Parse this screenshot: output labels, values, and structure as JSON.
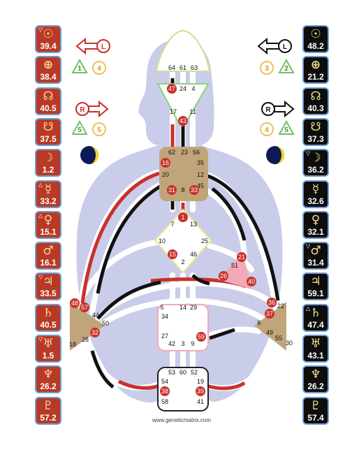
{
  "colors": {
    "design": "#b83a26",
    "personality": "#0d0d0d",
    "body": "#c9cdea",
    "center_tan": "#c1a57a",
    "center_pink": "#f0a9b5",
    "gate_red": "#c9302c"
  },
  "design_column": [
    {
      "icon": "sun",
      "symbol": "☉",
      "value": "39.4",
      "mark": "▽"
    },
    {
      "icon": "earth",
      "symbol": "⊕",
      "value": "38.4",
      "mark": ""
    },
    {
      "icon": "north-node",
      "symbol": "☊",
      "value": "40.5",
      "mark": ""
    },
    {
      "icon": "south-node",
      "symbol": "☋",
      "value": "37.5",
      "mark": ""
    },
    {
      "icon": "moon",
      "symbol": "☽",
      "value": "1.2",
      "mark": ""
    },
    {
      "icon": "mercury",
      "symbol": "☿",
      "value": "33.2",
      "mark": "△"
    },
    {
      "icon": "venus",
      "symbol": "♀",
      "value": "15.1",
      "mark": "△"
    },
    {
      "icon": "mars",
      "symbol": "♂",
      "value": "16.1",
      "mark": ""
    },
    {
      "icon": "jupiter",
      "symbol": "♃",
      "value": "33.5",
      "mark": "▽"
    },
    {
      "icon": "saturn",
      "symbol": "♄",
      "value": "40.5",
      "mark": ""
    },
    {
      "icon": "uranus",
      "symbol": "♅",
      "value": "1.5",
      "mark": "▽"
    },
    {
      "icon": "neptune",
      "symbol": "♆",
      "value": "26.2",
      "mark": ""
    },
    {
      "icon": "pluto",
      "symbol": "♇",
      "value": "57.2",
      "mark": ""
    }
  ],
  "personality_column": [
    {
      "icon": "sun",
      "symbol": "☉",
      "value": "48.2",
      "mark": ""
    },
    {
      "icon": "earth",
      "symbol": "⊕",
      "value": "21.2",
      "mark": ""
    },
    {
      "icon": "north-node",
      "symbol": "☊",
      "value": "40.3",
      "mark": ""
    },
    {
      "icon": "south-node",
      "symbol": "☋",
      "value": "37.3",
      "mark": ""
    },
    {
      "icon": "moon",
      "symbol": "☽",
      "value": "36.2",
      "mark": "▽"
    },
    {
      "icon": "mercury",
      "symbol": "☿",
      "value": "32.6",
      "mark": ""
    },
    {
      "icon": "venus",
      "symbol": "♀",
      "value": "32.1",
      "mark": ""
    },
    {
      "icon": "mars",
      "symbol": "♂",
      "value": "31.4",
      "mark": "▽"
    },
    {
      "icon": "jupiter",
      "symbol": "♃",
      "value": "59.1",
      "mark": ""
    },
    {
      "icon": "saturn",
      "symbol": "♄",
      "value": "47.4",
      "mark": "△"
    },
    {
      "icon": "uranus",
      "symbol": "♅",
      "value": "43.1",
      "mark": ""
    },
    {
      "icon": "neptune",
      "symbol": "♆",
      "value": "26.2",
      "mark": ""
    },
    {
      "icon": "pluto",
      "symbol": "♇",
      "value": "57.4",
      "mark": ""
    }
  ],
  "variables": {
    "design_top": {
      "arrow_letter": "L",
      "left_num": "1",
      "right_num": "4"
    },
    "design_bottom": {
      "arrow_letter": "R",
      "left_num": "5",
      "right_num": "5"
    },
    "personality_top": {
      "arrow_letter": "L",
      "left_num": "3",
      "right_num": "2"
    },
    "personality_bottom": {
      "arrow_letter": "R",
      "left_num": "4",
      "right_num": "5"
    }
  },
  "gates": {
    "head": [
      "64",
      "61",
      "63"
    ],
    "ajna": [
      "47",
      "24",
      "4",
      "17",
      "11",
      "43"
    ],
    "throat": [
      "62",
      "23",
      "56",
      "16",
      "35",
      "20",
      "12",
      "45",
      "31",
      "8",
      "33"
    ],
    "g": [
      "1",
      "7",
      "13",
      "10",
      "25",
      "15",
      "2",
      "46"
    ],
    "heart": [
      "21",
      "51",
      "26",
      "40"
    ],
    "spleen": [
      "48",
      "57",
      "44",
      "50",
      "32",
      "28",
      "18"
    ],
    "solar_plexus": [
      "36",
      "22",
      "37",
      "6",
      "49",
      "55",
      "30"
    ],
    "sacral": [
      "5",
      "14",
      "29",
      "34",
      "27",
      "59",
      "42",
      "3",
      "9"
    ],
    "root": [
      "53",
      "60",
      "52",
      "54",
      "19",
      "38",
      "39",
      "58",
      "41"
    ]
  },
  "footer": "www.geneticmatrix.com"
}
